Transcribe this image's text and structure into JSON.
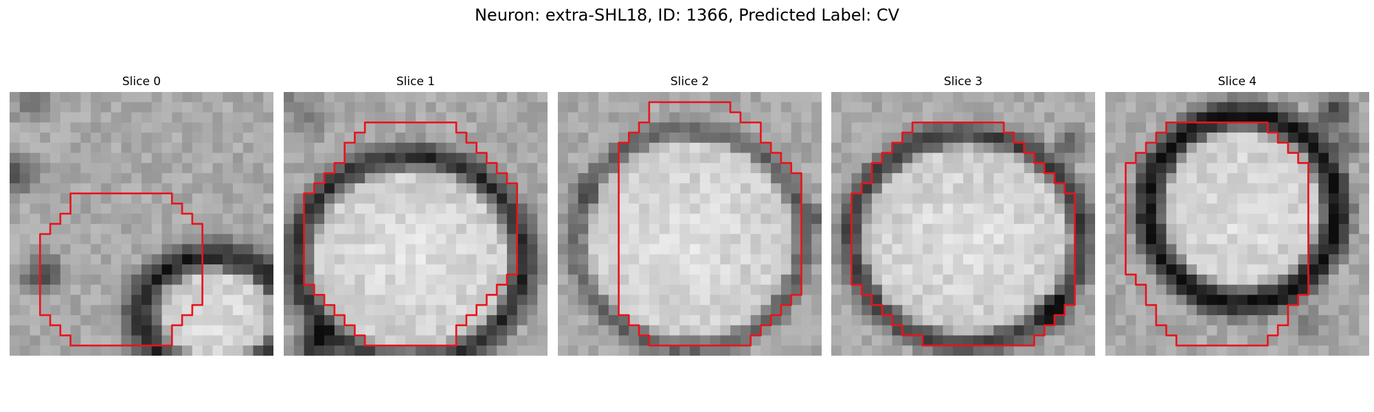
{
  "figure": {
    "title": "Neuron: extra-SHL18, ID: 1366, Predicted Label: CV"
  },
  "colors": {
    "outline": "#e8141c",
    "background": "#ffffff"
  },
  "grid_size": 26,
  "panels": [
    {
      "title": "Slice 0",
      "outline": [
        [
          6,
          10
        ],
        [
          16,
          10
        ],
        [
          16,
          11
        ],
        [
          17,
          11
        ],
        [
          17,
          12
        ],
        [
          18,
          12
        ],
        [
          18,
          13
        ],
        [
          19,
          13
        ],
        [
          19,
          21
        ],
        [
          18,
          21
        ],
        [
          18,
          22
        ],
        [
          17,
          22
        ],
        [
          17,
          23
        ],
        [
          16,
          23
        ],
        [
          16,
          25
        ],
        [
          6,
          25
        ],
        [
          6,
          24
        ],
        [
          5,
          24
        ],
        [
          5,
          23
        ],
        [
          4,
          23
        ],
        [
          4,
          22
        ],
        [
          3,
          22
        ],
        [
          3,
          14
        ],
        [
          4,
          14
        ],
        [
          4,
          13
        ],
        [
          5,
          13
        ],
        [
          5,
          12
        ],
        [
          6,
          12
        ]
      ]
    },
    {
      "title": "Slice 1",
      "outline": [
        [
          8,
          3
        ],
        [
          17,
          3
        ],
        [
          17,
          4
        ],
        [
          18,
          4
        ],
        [
          18,
          5
        ],
        [
          19,
          5
        ],
        [
          19,
          6
        ],
        [
          20,
          6
        ],
        [
          20,
          7
        ],
        [
          21,
          7
        ],
        [
          21,
          8
        ],
        [
          22,
          8
        ],
        [
          22,
          9
        ],
        [
          23,
          9
        ],
        [
          23,
          18
        ],
        [
          22,
          18
        ],
        [
          22,
          19
        ],
        [
          21,
          19
        ],
        [
          21,
          20
        ],
        [
          20,
          20
        ],
        [
          20,
          21
        ],
        [
          19,
          21
        ],
        [
          19,
          22
        ],
        [
          18,
          22
        ],
        [
          18,
          23
        ],
        [
          17,
          23
        ],
        [
          17,
          25
        ],
        [
          8,
          25
        ],
        [
          8,
          24
        ],
        [
          7,
          24
        ],
        [
          7,
          23
        ],
        [
          6,
          23
        ],
        [
          6,
          22
        ],
        [
          5,
          22
        ],
        [
          5,
          21
        ],
        [
          4,
          21
        ],
        [
          4,
          20
        ],
        [
          3,
          20
        ],
        [
          3,
          19
        ],
        [
          2,
          19
        ],
        [
          2,
          10
        ],
        [
          3,
          10
        ],
        [
          3,
          9
        ],
        [
          4,
          9
        ],
        [
          4,
          8
        ],
        [
          5,
          8
        ],
        [
          5,
          7
        ],
        [
          6,
          7
        ],
        [
          6,
          5
        ],
        [
          7,
          5
        ],
        [
          7,
          4
        ],
        [
          8,
          4
        ]
      ]
    },
    {
      "title": "Slice 2",
      "outline": [
        [
          9,
          1
        ],
        [
          17,
          1
        ],
        [
          17,
          2
        ],
        [
          18,
          2
        ],
        [
          18,
          3
        ],
        [
          20,
          3
        ],
        [
          20,
          5
        ],
        [
          21,
          5
        ],
        [
          21,
          6
        ],
        [
          22,
          6
        ],
        [
          22,
          7
        ],
        [
          23,
          7
        ],
        [
          23,
          8
        ],
        [
          24,
          8
        ],
        [
          24,
          20
        ],
        [
          23,
          20
        ],
        [
          23,
          21
        ],
        [
          22,
          21
        ],
        [
          22,
          22
        ],
        [
          21,
          22
        ],
        [
          21,
          23
        ],
        [
          20,
          23
        ],
        [
          20,
          24
        ],
        [
          19,
          24
        ],
        [
          19,
          25
        ],
        [
          9,
          25
        ],
        [
          9,
          24
        ],
        [
          8,
          24
        ],
        [
          8,
          23
        ],
        [
          7,
          23
        ],
        [
          7,
          22
        ],
        [
          6,
          22
        ],
        [
          6,
          5
        ],
        [
          7,
          5
        ],
        [
          7,
          4
        ],
        [
          8,
          4
        ],
        [
          8,
          3
        ],
        [
          9,
          3
        ]
      ]
    },
    {
      "title": "Slice 3",
      "outline": [
        [
          8,
          3
        ],
        [
          17,
          3
        ],
        [
          17,
          4
        ],
        [
          18,
          4
        ],
        [
          18,
          5
        ],
        [
          19,
          5
        ],
        [
          19,
          6
        ],
        [
          20,
          6
        ],
        [
          20,
          7
        ],
        [
          21,
          7
        ],
        [
          21,
          8
        ],
        [
          22,
          8
        ],
        [
          22,
          9
        ],
        [
          23,
          9
        ],
        [
          23,
          10
        ],
        [
          24,
          10
        ],
        [
          24,
          21
        ],
        [
          23,
          21
        ],
        [
          23,
          22
        ],
        [
          22,
          22
        ],
        [
          22,
          23
        ],
        [
          21,
          23
        ],
        [
          21,
          24
        ],
        [
          20,
          24
        ],
        [
          20,
          25
        ],
        [
          9,
          25
        ],
        [
          9,
          24
        ],
        [
          7,
          24
        ],
        [
          7,
          23
        ],
        [
          6,
          23
        ],
        [
          6,
          22
        ],
        [
          5,
          22
        ],
        [
          5,
          21
        ],
        [
          4,
          21
        ],
        [
          4,
          20
        ],
        [
          3,
          20
        ],
        [
          3,
          19
        ],
        [
          2,
          19
        ],
        [
          2,
          10
        ],
        [
          3,
          10
        ],
        [
          3,
          9
        ],
        [
          4,
          9
        ],
        [
          4,
          7
        ],
        [
          5,
          7
        ],
        [
          5,
          6
        ],
        [
          6,
          6
        ],
        [
          6,
          5
        ],
        [
          7,
          5
        ],
        [
          7,
          4
        ],
        [
          8,
          4
        ]
      ]
    },
    {
      "title": "Slice 4",
      "outline": [
        [
          6,
          3
        ],
        [
          16,
          3
        ],
        [
          16,
          4
        ],
        [
          17,
          4
        ],
        [
          17,
          5
        ],
        [
          18,
          5
        ],
        [
          18,
          6
        ],
        [
          19,
          6
        ],
        [
          19,
          7
        ],
        [
          20,
          7
        ],
        [
          20,
          20
        ],
        [
          19,
          20
        ],
        [
          19,
          21
        ],
        [
          18,
          21
        ],
        [
          18,
          23
        ],
        [
          17,
          23
        ],
        [
          17,
          24
        ],
        [
          16,
          24
        ],
        [
          16,
          25
        ],
        [
          7,
          25
        ],
        [
          7,
          24
        ],
        [
          6,
          24
        ],
        [
          6,
          23
        ],
        [
          5,
          23
        ],
        [
          5,
          21
        ],
        [
          4,
          21
        ],
        [
          4,
          19
        ],
        [
          3,
          19
        ],
        [
          3,
          18
        ],
        [
          2,
          18
        ],
        [
          2,
          7
        ],
        [
          3,
          7
        ],
        [
          3,
          6
        ],
        [
          4,
          6
        ],
        [
          4,
          5
        ],
        [
          5,
          5
        ],
        [
          5,
          4
        ],
        [
          6,
          4
        ]
      ]
    }
  ]
}
